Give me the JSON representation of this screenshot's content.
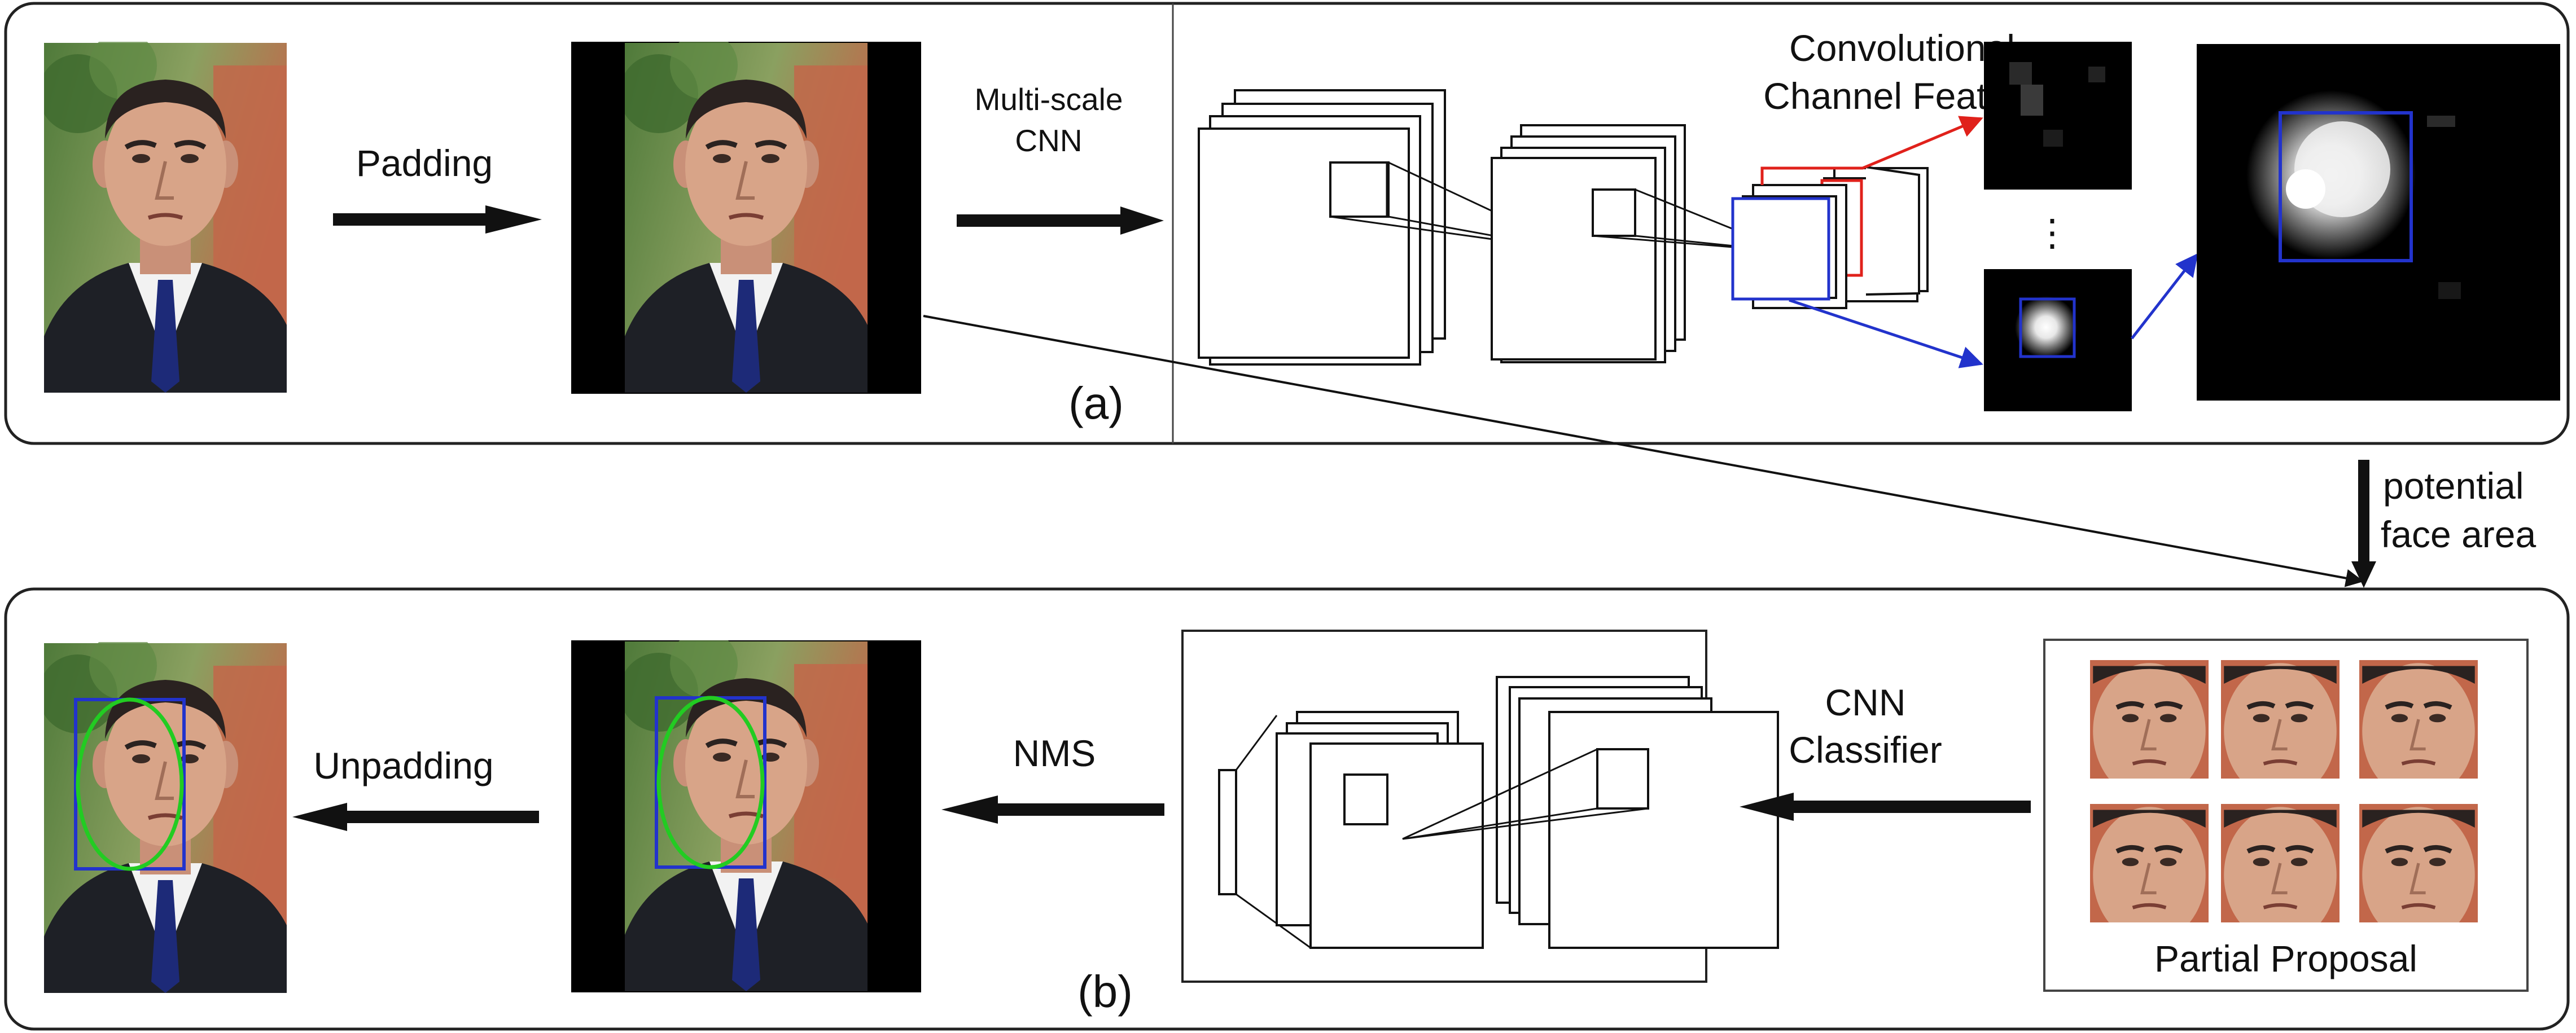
{
  "panel_a": {
    "label": "(a)",
    "step_padding": "Padding",
    "step_multiscale_line1": "Multi-scale",
    "step_multiscale_line2": "CNN",
    "ccf_line1": "Convolutional",
    "ccf_line2": "Channel Feature",
    "ellipsis": "⋮"
  },
  "transition": {
    "line1": "potential",
    "line2": "face area"
  },
  "panel_b": {
    "label": "(b)",
    "step_unpadding": "Unpadding",
    "step_nms": "NMS",
    "classifier_line1": "CNN",
    "classifier_line2": "Classifier",
    "partial_proposal": "Partial Proposal"
  },
  "colors": {
    "red_channel": "#e0211b",
    "blue_channel": "#2233cc",
    "face_ellipse": "#22cc22",
    "face_box": "#2233cc",
    "skin": "#d8a488",
    "suit": "#1e2026",
    "tie": "#1d2a78",
    "foliage": "#4f7a3a",
    "brick": "#c2674a"
  },
  "icons": {
    "photo": "face-photo-icon",
    "heatmap": "heatmap-icon",
    "arrow": "flow-arrow-icon"
  }
}
